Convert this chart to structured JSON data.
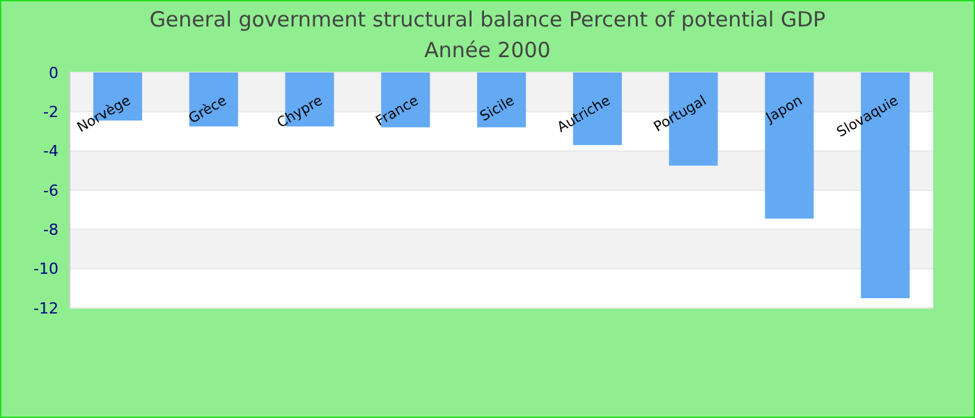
{
  "chart_data": {
    "type": "bar",
    "title": "General government structural balance  Percent of potential GDP",
    "subtitle": "Année 2000",
    "categories": [
      "Norvège",
      "Grèce",
      "Chypre",
      "France",
      "Sicile",
      "Autriche",
      "Portugal",
      "Japon",
      "Slovaquie"
    ],
    "values": [
      -2.45,
      -2.75,
      -2.75,
      -2.8,
      -2.8,
      -3.7,
      -4.75,
      -7.45,
      -11.5
    ],
    "color": "#63a9f4",
    "ylim": [
      -12,
      0
    ],
    "yticks": [
      -12,
      -10,
      -8,
      -6,
      -4,
      -2,
      0
    ],
    "grid": "y",
    "legend": false
  }
}
